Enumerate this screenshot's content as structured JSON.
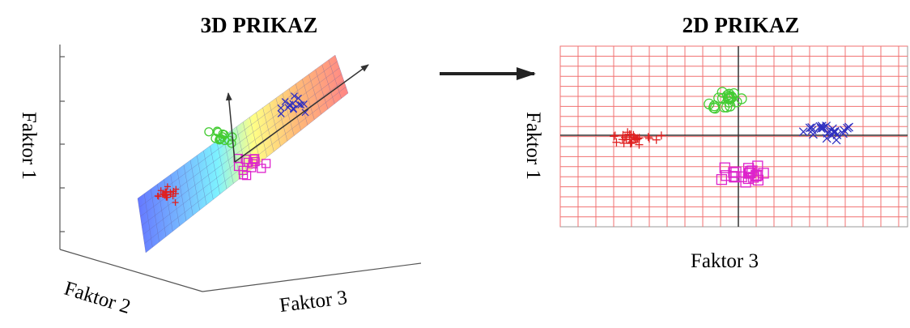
{
  "left_panel": {
    "title": "3D PRIKAZ",
    "y_axis_label": "Faktor 1",
    "x_axis_label": "Faktor 2",
    "z_axis_label": "Faktor 3"
  },
  "right_panel": {
    "title": "2D PRIKAZ",
    "y_axis_label": "Faktor 1",
    "x_axis_label": "Faktor 3"
  },
  "colors": {
    "cluster_red": "#e02020",
    "cluster_green": "#44cc33",
    "cluster_blue": "#3030c0",
    "cluster_magenta": "#dd22cc",
    "grid": "#f07070"
  }
}
